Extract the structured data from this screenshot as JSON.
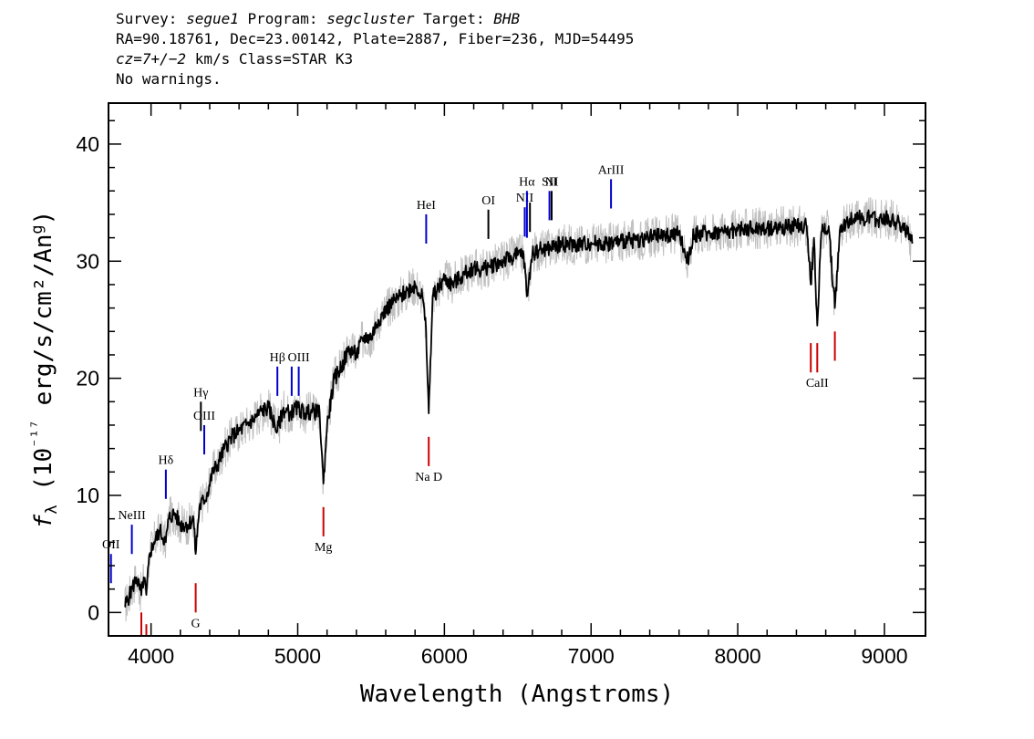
{
  "header": {
    "survey_label": "Survey: ",
    "survey": "segue1",
    "program_label": " Program: ",
    "program": "segcluster",
    "target_label": " Target: ",
    "target": "BHB",
    "line2": "RA=90.18761, Dec=23.00142, Plate=2887, Fiber=236, MJD=54495",
    "cz": "cz=7+/−2",
    "line3_rest": " km/s Class=STAR K3",
    "line4": "No warnings."
  },
  "chart_data": {
    "type": "line",
    "xlabel": "Wavelength (Angstroms)",
    "ylabel": "fλ (10⁻¹⁷ erg/s/cm²/Ang)",
    "xlim": [
      3710,
      9280
    ],
    "ylim": [
      -2,
      43.5
    ],
    "x_ticks": [
      4000,
      5000,
      6000,
      7000,
      8000,
      9000
    ],
    "x_tick_labels": [
      "4000",
      "5000",
      "6000",
      "7000",
      "8000",
      "9000"
    ],
    "y_ticks": [
      0,
      10,
      20,
      30,
      40
    ],
    "y_tick_labels": [
      "0",
      "10",
      "20",
      "30",
      "40"
    ],
    "series": [
      {
        "role": "flux",
        "color": "#000000",
        "x": [
          3820,
          3870,
          3900,
          3934,
          3950,
          3968,
          3990,
          4020,
          4060,
          4101,
          4120,
          4160,
          4200,
          4250,
          4290,
          4304,
          4330,
          4380,
          4420,
          4450,
          4500,
          4550,
          4600,
          4650,
          4700,
          4750,
          4800,
          4861,
          4900,
          4950,
          5000,
          5050,
          5100,
          5150,
          5175,
          5200,
          5250,
          5300,
          5350,
          5400,
          5450,
          5500,
          5550,
          5600,
          5650,
          5700,
          5750,
          5800,
          5850,
          5875,
          5893,
          5920,
          5950,
          6000,
          6050,
          6100,
          6150,
          6200,
          6250,
          6300,
          6350,
          6400,
          6450,
          6500,
          6540,
          6563,
          6600,
          6650,
          6700,
          6750,
          6800,
          6900,
          7000,
          7100,
          7200,
          7300,
          7400,
          7500,
          7600,
          7660,
          7700,
          7800,
          7900,
          8000,
          8100,
          8200,
          8300,
          8400,
          8470,
          8498,
          8520,
          8542,
          8570,
          8620,
          8662,
          8700,
          8750,
          8800,
          8850,
          8900,
          8950,
          9000,
          9050,
          9100,
          9150,
          9190
        ],
        "y": [
          0.5,
          2,
          3,
          1.5,
          3,
          1.5,
          5,
          6,
          7,
          6,
          8,
          8.5,
          7.5,
          7.5,
          8,
          5,
          9,
          10,
          12,
          12.5,
          14,
          15,
          15.5,
          16,
          16.5,
          17.2,
          17.5,
          15.5,
          17.3,
          17,
          17.5,
          17,
          17.2,
          17,
          11,
          16,
          20,
          21,
          22.5,
          22,
          23.5,
          23.5,
          25,
          25.8,
          26.5,
          27,
          27.5,
          28,
          27,
          24,
          17,
          27,
          27.5,
          28.5,
          28,
          28.5,
          29,
          29.5,
          29.2,
          29.5,
          29.8,
          30,
          30.3,
          30.5,
          30.6,
          27,
          30.7,
          31,
          31,
          31.3,
          31.5,
          31.4,
          31.6,
          31.5,
          31.7,
          31.8,
          32,
          32.2,
          32.3,
          30,
          32.3,
          32.4,
          32.5,
          32.7,
          32.8,
          32.8,
          32.9,
          33,
          33,
          28,
          32,
          24.5,
          32.5,
          33,
          26,
          33,
          33.3,
          34,
          33.5,
          33.7,
          33.5,
          33.8,
          33.5,
          33.3,
          32.5,
          31.5
        ]
      },
      {
        "role": "noise_envelope",
        "color": "#c0c0c0",
        "spread": 0.9
      }
    ],
    "emission_lines": [
      {
        "name": "OII",
        "wavelength": 3727,
        "y_top": 5.0,
        "y_bottom": 2.5,
        "color": "#0000cc",
        "label": "OII"
      },
      {
        "name": "NeIII",
        "wavelength": 3869,
        "y_top": 7.5,
        "y_bottom": 5.0,
        "color": "#0000cc",
        "label": "NeIII"
      },
      {
        "name": "Hdelta",
        "wavelength": 4101,
        "y_top": 12.2,
        "y_bottom": 9.7,
        "color": "#0000cc",
        "label": "Hδ"
      },
      {
        "name": "Hgamma",
        "wavelength": 4340,
        "y_top": 18.0,
        "y_bottom": 15.5,
        "color": "#000000",
        "label": "Hγ"
      },
      {
        "name": "OIII-4363",
        "wavelength": 4363,
        "y_top": 16.0,
        "y_bottom": 13.5,
        "color": "#0000cc",
        "label": "OIII"
      },
      {
        "name": "Hbeta",
        "wavelength": 4861,
        "y_top": 21.0,
        "y_bottom": 18.5,
        "color": "#0000cc",
        "label": "Hβ"
      },
      {
        "name": "OIII-4959",
        "wavelength": 4959,
        "y_top": 21.0,
        "y_bottom": 18.5,
        "color": "#0000cc",
        "label": ""
      },
      {
        "name": "OIII-5007",
        "wavelength": 5007,
        "y_top": 21.0,
        "y_bottom": 18.5,
        "color": "#0000cc",
        "label": "OIII"
      },
      {
        "name": "HeI",
        "wavelength": 5876,
        "y_top": 34.0,
        "y_bottom": 31.5,
        "color": "#0000cc",
        "label": "HeI"
      },
      {
        "name": "OI",
        "wavelength": 6300,
        "y_top": 34.4,
        "y_bottom": 31.9,
        "color": "#000000",
        "label": "OI"
      },
      {
        "name": "NII-6548",
        "wavelength": 6548,
        "y_top": 34.6,
        "y_bottom": 32.1,
        "color": "#0000cc",
        "label": "NII"
      },
      {
        "name": "Halpha",
        "wavelength": 6563,
        "y_top": 36.0,
        "y_bottom": 32.0,
        "color": "#0000cc",
        "label": "Hα"
      },
      {
        "name": "NII-6583",
        "wavelength": 6583,
        "y_top": 35.0,
        "y_bottom": 32.5,
        "color": "#000000",
        "label": ""
      },
      {
        "name": "SII-6716",
        "wavelength": 6716,
        "y_top": 36.0,
        "y_bottom": 33.5,
        "color": "#0000cc",
        "label": "SII"
      },
      {
        "name": "SII-6731",
        "wavelength": 6731,
        "y_top": 36.0,
        "y_bottom": 33.5,
        "color": "#000000",
        "label": "NI"
      },
      {
        "name": "ArIII",
        "wavelength": 7136,
        "y_top": 37.0,
        "y_bottom": 34.5,
        "color": "#0000cc",
        "label": "ArIII"
      }
    ],
    "absorption_lines": [
      {
        "name": "K",
        "wavelength": 3934,
        "y_top": 0.0,
        "y_bottom": -2.0,
        "color": "#cc0000",
        "label": ""
      },
      {
        "name": "H",
        "wavelength": 3968,
        "y_top": -1.0,
        "y_bottom": -2.0,
        "color": "#cc0000",
        "label": ""
      },
      {
        "name": "G",
        "wavelength": 4304,
        "y_top": 2.5,
        "y_bottom": 0.0,
        "color": "#cc0000",
        "label": "G"
      },
      {
        "name": "Mg",
        "wavelength": 5175,
        "y_top": 9.0,
        "y_bottom": 6.5,
        "color": "#cc0000",
        "label": "Mg"
      },
      {
        "name": "NaD",
        "wavelength": 5893,
        "y_top": 15.0,
        "y_bottom": 12.5,
        "color": "#cc0000",
        "label": "Na D"
      },
      {
        "name": "CaII-8498",
        "wavelength": 8498,
        "y_top": 23.0,
        "y_bottom": 20.5,
        "color": "#cc0000",
        "label": ""
      },
      {
        "name": "CaII-8542",
        "wavelength": 8542,
        "y_top": 23.0,
        "y_bottom": 20.5,
        "color": "#cc0000",
        "label": "CaII"
      },
      {
        "name": "CaII-8662",
        "wavelength": 8662,
        "y_top": 24.0,
        "y_bottom": 21.5,
        "color": "#cc0000",
        "label": ""
      }
    ]
  }
}
